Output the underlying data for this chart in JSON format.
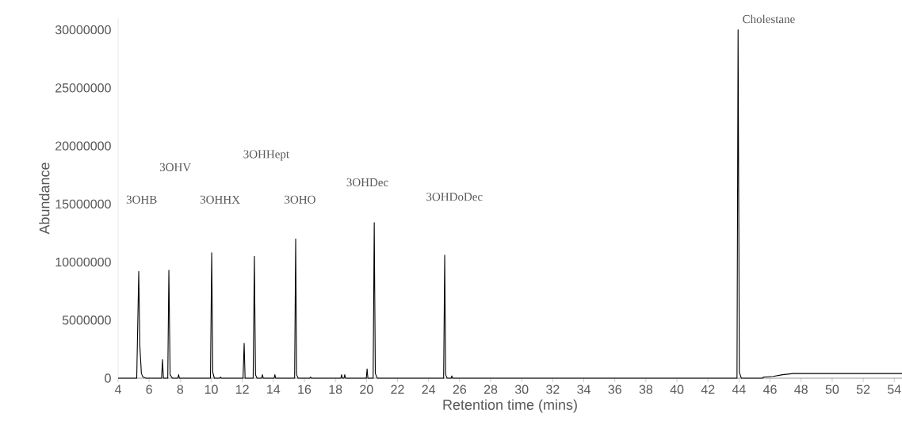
{
  "chart_data": {
    "type": "line",
    "xlabel": "Retention time (mins)",
    "ylabel": "Abundance",
    "color": "#000000",
    "marker": "none",
    "xlim": [
      4,
      54.5
    ],
    "ylim": [
      0,
      31000000
    ],
    "xticks": [
      4,
      6,
      8,
      10,
      12,
      14,
      16,
      18,
      20,
      22,
      24,
      26,
      28,
      30,
      32,
      34,
      36,
      38,
      40,
      42,
      44,
      46,
      48,
      50,
      52,
      54
    ],
    "yticks": [
      0,
      5000000,
      10000000,
      15000000,
      20000000,
      25000000,
      30000000
    ],
    "x": [
      4.0,
      5.2,
      5.33,
      5.4,
      5.5,
      5.6,
      5.8,
      6.8,
      6.86,
      6.92,
      7.2,
      7.27,
      7.35,
      7.5,
      7.85,
      7.9,
      7.95,
      9.95,
      10.03,
      10.1,
      10.2,
      10.55,
      10.6,
      10.65,
      12.05,
      12.12,
      12.18,
      12.7,
      12.78,
      12.85,
      12.95,
      13.25,
      13.3,
      13.35,
      14.05,
      14.1,
      14.15,
      15.37,
      15.44,
      15.5,
      15.6,
      16.35,
      16.4,
      16.45,
      18.35,
      18.4,
      18.45,
      18.55,
      18.6,
      18.65,
      19.99,
      20.04,
      20.09,
      20.43,
      20.5,
      20.57,
      20.7,
      24.97,
      25.04,
      25.1,
      25.2,
      25.45,
      25.5,
      25.55,
      43.87,
      43.94,
      44.02,
      44.15,
      45.5,
      45.6,
      46.2,
      46.8,
      47.5,
      54.5
    ],
    "values": [
      0,
      0,
      9200000,
      2800000,
      400000,
      100000,
      0,
      0,
      1600000,
      0,
      0,
      9300000,
      300000,
      0,
      0,
      300000,
      0,
      0,
      10800000,
      500000,
      0,
      0,
      100000,
      0,
      0,
      3000000,
      0,
      0,
      10500000,
      300000,
      0,
      0,
      300000,
      0,
      0,
      300000,
      0,
      0,
      12000000,
      300000,
      0,
      0,
      100000,
      0,
      0,
      300000,
      0,
      0,
      300000,
      0,
      0,
      800000,
      0,
      0,
      13400000,
      400000,
      0,
      0,
      10600000,
      300000,
      0,
      0,
      200000,
      0,
      0,
      30000000,
      500000,
      0,
      0,
      100000,
      150000,
      300000,
      400000,
      400000
    ],
    "annotations": [
      "3OHB",
      "3OHV",
      "3OHHX",
      "3OHHept",
      "3OHO",
      "3OHDec",
      "3OHDoDec",
      "Cholestane"
    ]
  }
}
